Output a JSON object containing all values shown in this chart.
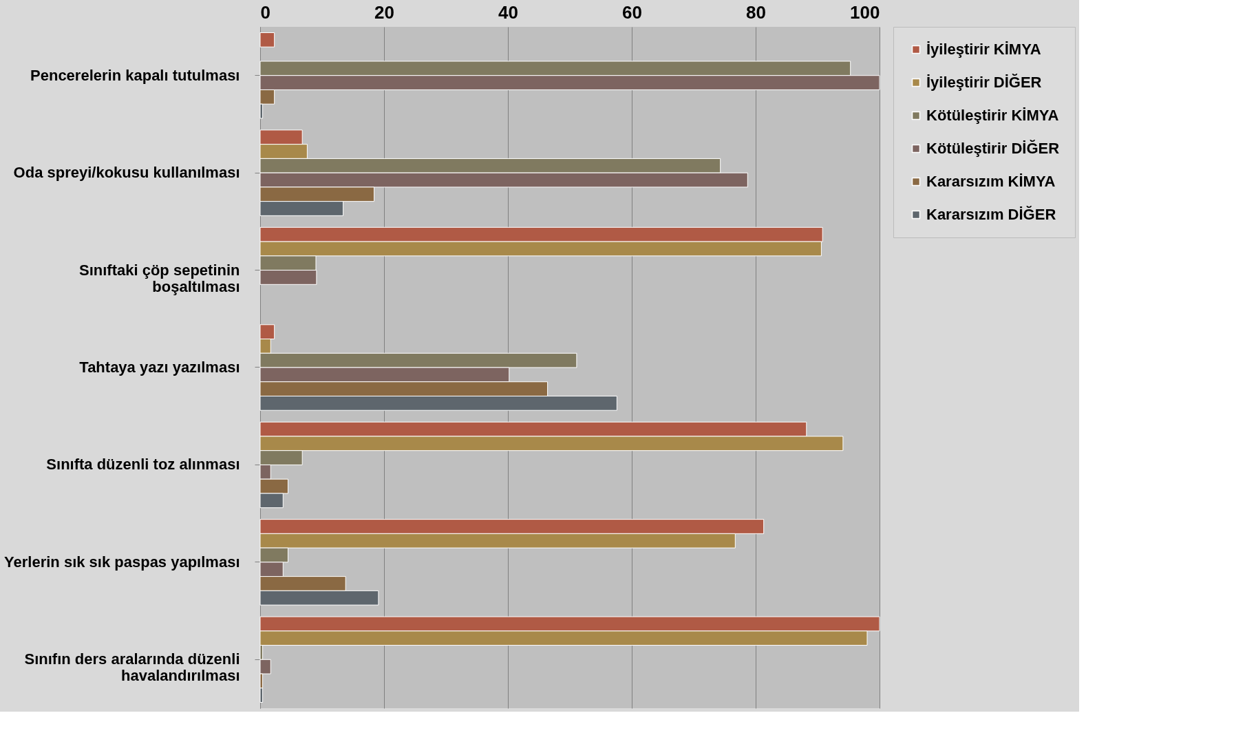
{
  "chart_data": {
    "type": "bar",
    "orientation": "horizontal",
    "categories": [
      "Pencerelerin kapalı tutulması",
      "Oda spreyi/kokusu kullanılması",
      "Sınıftaki çöp sepetinin\nboşaltılması",
      "Tahtaya yazı yazılması",
      "Sınıfta düzenli toz alınması",
      "Yerlerin sık sık paspas yapılması",
      "Sınıfın ders aralarında düzenli\nhavalandırılması"
    ],
    "series": [
      {
        "name": "İyileştirir KİMYA",
        "color": "#b05a45",
        "values": [
          2.3,
          6.8,
          90.8,
          2.3,
          88.2,
          81.3,
          100
        ]
      },
      {
        "name": "İyileştirir DİĞER",
        "color": "#a8894a",
        "values": [
          null,
          7.6,
          90.6,
          1.7,
          94.1,
          76.7,
          98
        ]
      },
      {
        "name": "Kötüleştirir KİMYA",
        "color": "#807a60",
        "values": [
          95.3,
          74.3,
          9,
          51.1,
          6.8,
          4.5,
          0.4
        ]
      },
      {
        "name": "Kötüleştirir DİĞER",
        "color": "#7d6460",
        "values": [
          100,
          78.7,
          9.1,
          40.2,
          1.7,
          3.7,
          1.7
        ]
      },
      {
        "name": "Kararsızım KİMYA",
        "color": "#8a6943",
        "values": [
          2.3,
          18.4,
          null,
          46.4,
          4.5,
          13.8,
          0.4
        ]
      },
      {
        "name": "Kararsızım DİĞER",
        "color": "#5e666d",
        "values": [
          0.4,
          13.4,
          null,
          57.6,
          3.7,
          19.1,
          0.4
        ]
      }
    ],
    "xlim": [
      0,
      100
    ],
    "xticks": [
      0,
      20,
      40,
      60,
      80,
      100
    ],
    "grid": "x",
    "legend": "right"
  }
}
